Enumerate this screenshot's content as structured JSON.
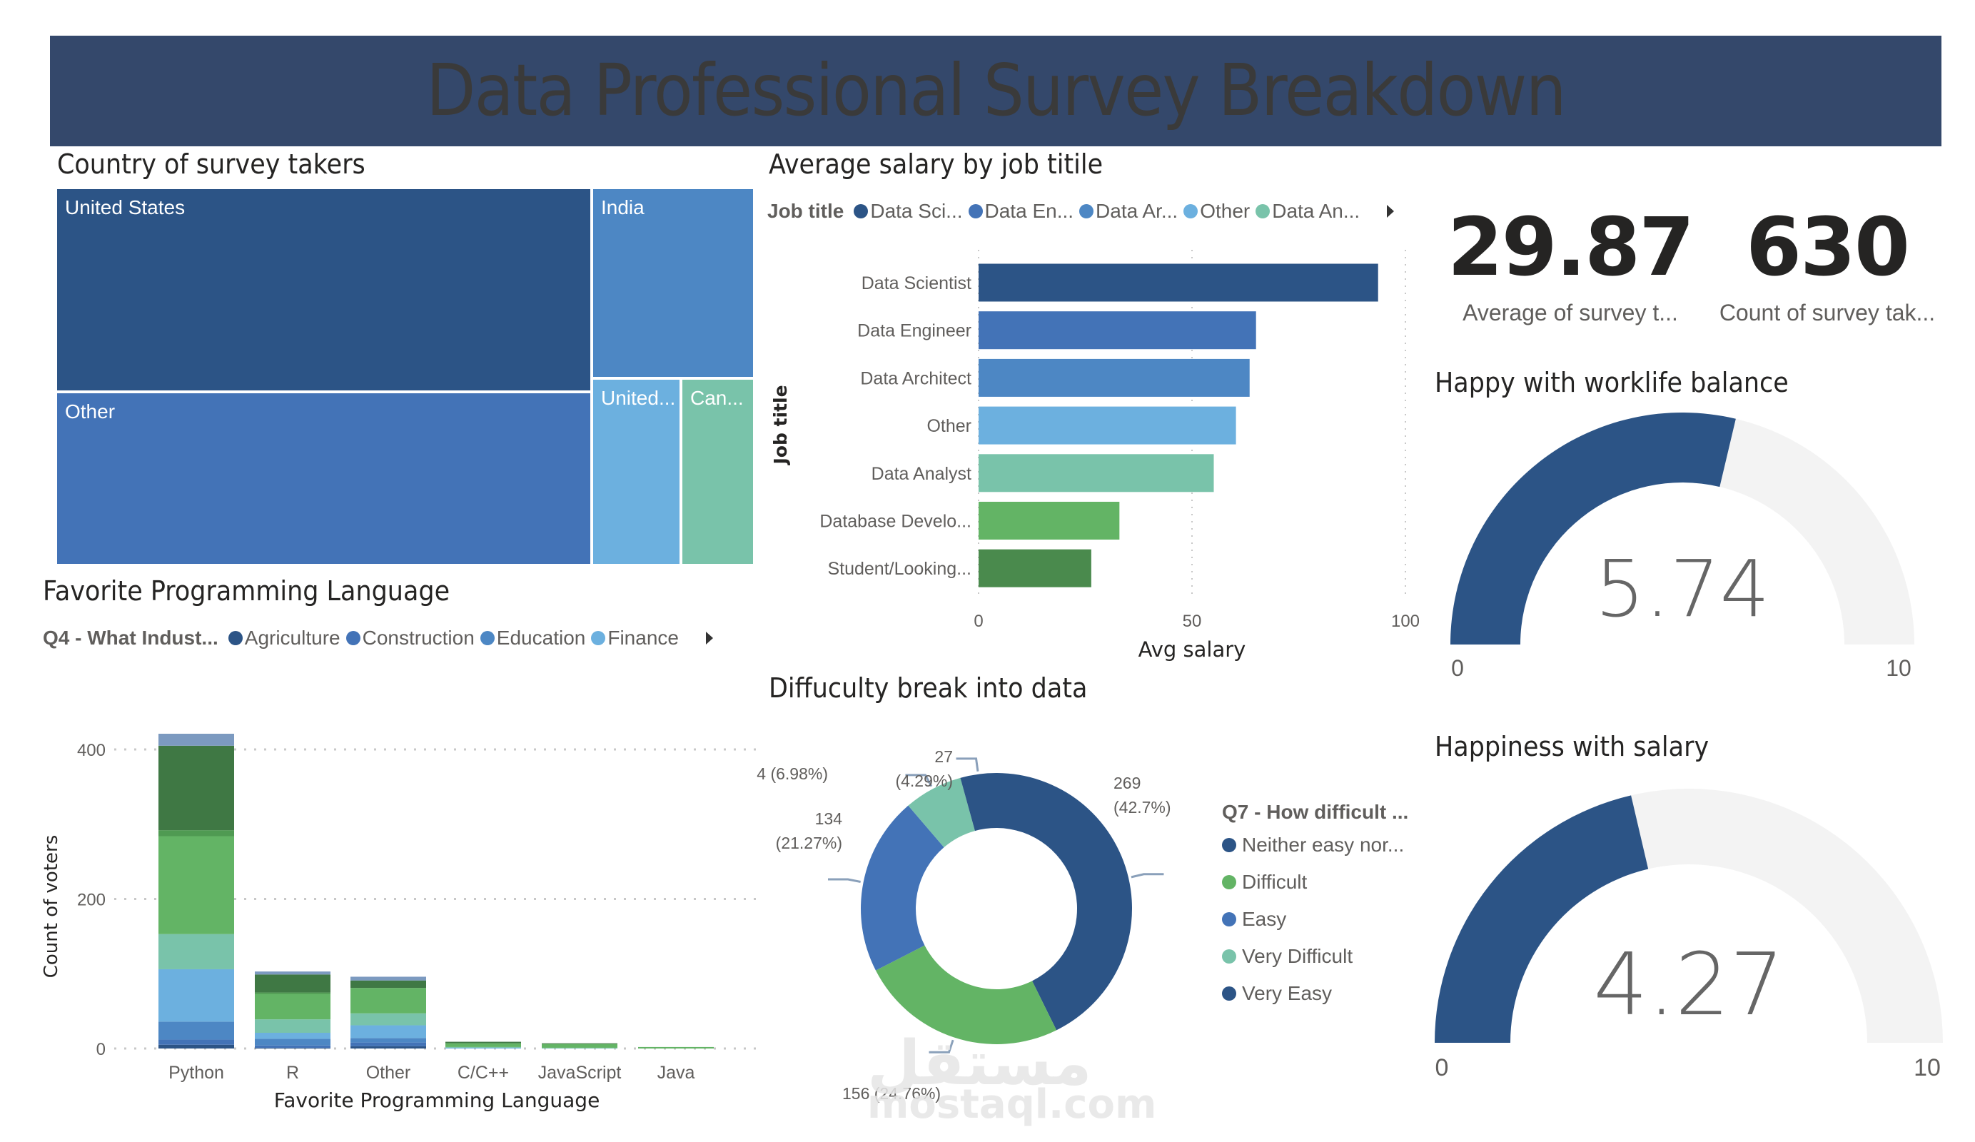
{
  "header": {
    "title": "Data Professional Survey Breakdown"
  },
  "colors": {
    "header_bg": "#34486b",
    "navy": "#2c5486",
    "blue": "#4373b7",
    "mid_blue": "#4d87c4",
    "light_blue": "#6cb0df",
    "teal": "#79c3aa",
    "green": "#63b465",
    "dark_green": "#3f7844",
    "grey_blue": "#7c9ac0",
    "gauge_track": "#f3f3f3"
  },
  "treemap": {
    "title": "Country of survey takers",
    "cells": [
      {
        "label": "United States",
        "color": "#2c5486"
      },
      {
        "label": "Other",
        "color": "#4373b7"
      },
      {
        "label": "India",
        "color": "#4d87c4"
      },
      {
        "label": "United...",
        "color": "#6cb0df"
      },
      {
        "label": "Can...",
        "color": "#79c3aa"
      }
    ]
  },
  "salary_chart": {
    "title": "Average salary by job titile",
    "legend_title": "Job title",
    "legend_items": [
      {
        "label": "Data Sci...",
        "color": "#2c5486"
      },
      {
        "label": "Data En...",
        "color": "#4373b7"
      },
      {
        "label": "Data Ar...",
        "color": "#4d87c4"
      },
      {
        "label": "Other",
        "color": "#6cb0df"
      },
      {
        "label": "Data An...",
        "color": "#79c3aa"
      }
    ]
  },
  "kpis": [
    {
      "value": "29.87",
      "label": "Average of survey t..."
    },
    {
      "value": "630",
      "label": "Count of survey tak..."
    }
  ],
  "gauges": [
    {
      "title": "Happy with worklife balance",
      "value": 5.74,
      "value_label": "5.74",
      "min_label": "0",
      "max_label": "10",
      "min": 0,
      "max": 10
    },
    {
      "title": "Happiness with salary",
      "value": 4.27,
      "value_label": "4.27",
      "min_label": "0",
      "max_label": "10",
      "min": 0,
      "max": 10
    }
  ],
  "language_chart": {
    "title": "Favorite Programming Language",
    "legend_title": "Q4 - What Indust...",
    "legend_items": [
      {
        "label": "Agriculture",
        "color": "#2c5486"
      },
      {
        "label": "Construction",
        "color": "#4373b7"
      },
      {
        "label": "Education",
        "color": "#4d87c4"
      },
      {
        "label": "Finance",
        "color": "#6cb0df"
      }
    ]
  },
  "donut_chart": {
    "title": "Diffuculty break into data",
    "legend_title": "Q7 - How difficult ...",
    "legend_items": [
      {
        "label": "Neither easy nor...",
        "color": "#2c5486"
      },
      {
        "label": "Difficult",
        "color": "#63b465"
      },
      {
        "label": "Easy",
        "color": "#4373b7"
      },
      {
        "label": "Very Difficult",
        "color": "#79c3aa"
      },
      {
        "label": "Very Easy",
        "color": "#2c5486"
      }
    ]
  },
  "watermark": {
    "arabic": "مستقل",
    "latin": "mostaql.com"
  },
  "chart_data": [
    {
      "id": "treemap",
      "type": "treemap",
      "title": "Country of survey takers",
      "categories": [
        "United States",
        "Other",
        "India",
        "United...",
        "Can..."
      ],
      "relative_area_pct": [
        41.5,
        35.5,
        11.5,
        6.0,
        5.5
      ]
    },
    {
      "id": "salary",
      "type": "bar",
      "orientation": "horizontal",
      "title": "Average salary by job titile",
      "categories": [
        "Data Scientist",
        "Data Engineer",
        "Data Architect",
        "Other",
        "Data Analyst",
        "Database Develo...",
        "Student/Looking..."
      ],
      "values": [
        93.6,
        65.0,
        63.5,
        60.3,
        55.1,
        33.0,
        26.4
      ],
      "colors": [
        "#2c5486",
        "#4373b7",
        "#4d87c4",
        "#6cb0df",
        "#79c3aa",
        "#63b465",
        "#4a8a4d"
      ],
      "xlabel": "Avg salary",
      "ylabel": "Job title",
      "xlim": [
        0,
        100
      ],
      "xticks": [
        0,
        50,
        100
      ],
      "grid": true
    },
    {
      "id": "languages",
      "type": "bar",
      "stacked": true,
      "title": "Favorite Programming Language",
      "categories": [
        "Python",
        "R",
        "Other",
        "C/C++",
        "JavaScript",
        "Java"
      ],
      "series": [
        {
          "name": "Agriculture",
          "color": "#2c5486",
          "values": [
            5,
            1,
            3,
            0,
            0,
            0
          ]
        },
        {
          "name": "Construction",
          "color": "#4373b7",
          "values": [
            7,
            3,
            5,
            0,
            0,
            0
          ]
        },
        {
          "name": "Education",
          "color": "#4d87c4",
          "values": [
            24,
            9,
            6,
            0,
            0,
            0
          ]
        },
        {
          "name": "Finance",
          "color": "#6cb0df",
          "values": [
            70,
            8,
            17,
            1,
            0,
            0
          ]
        },
        {
          "name": "",
          "color": "#79c3aa",
          "values": [
            47,
            18,
            16,
            1,
            1,
            0
          ]
        },
        {
          "name": "",
          "color": "#63b465",
          "values": [
            131,
            34,
            34,
            5,
            5,
            2
          ]
        },
        {
          "name": "",
          "color": "#4f9a52",
          "values": [
            8,
            2,
            0,
            0,
            0,
            0
          ]
        },
        {
          "name": "",
          "color": "#3f7844",
          "values": [
            113,
            24,
            10,
            2,
            1,
            0
          ]
        },
        {
          "name": "",
          "color": "#7c9ac0",
          "values": [
            16,
            4,
            5,
            0,
            0,
            0
          ]
        }
      ],
      "xlabel": "Favorite Programming Language",
      "ylabel": "Count of voters",
      "ylim": [
        0,
        420
      ],
      "yticks": [
        0,
        200,
        400
      ],
      "grid": true
    },
    {
      "id": "difficulty",
      "type": "pie",
      "donut": true,
      "title": "Diffuculty break into data",
      "categories": [
        "Neither easy nor...",
        "Difficult",
        "Easy",
        "Very Difficult",
        "Very Easy"
      ],
      "values": [
        269,
        156,
        134,
        44,
        27
      ],
      "percents": [
        "42.7%",
        "24.76%",
        "21.27%",
        "6.98%",
        "4.29%"
      ],
      "labels": [
        "269\n(42.7%)",
        "156 (24.76%)",
        "134\n(21.27%)",
        "44 (6.98%)",
        "27\n(4.29%)"
      ],
      "colors": [
        "#2c5486",
        "#63b465",
        "#4373b7",
        "#79c3aa",
        "#2c5486"
      ]
    }
  ]
}
